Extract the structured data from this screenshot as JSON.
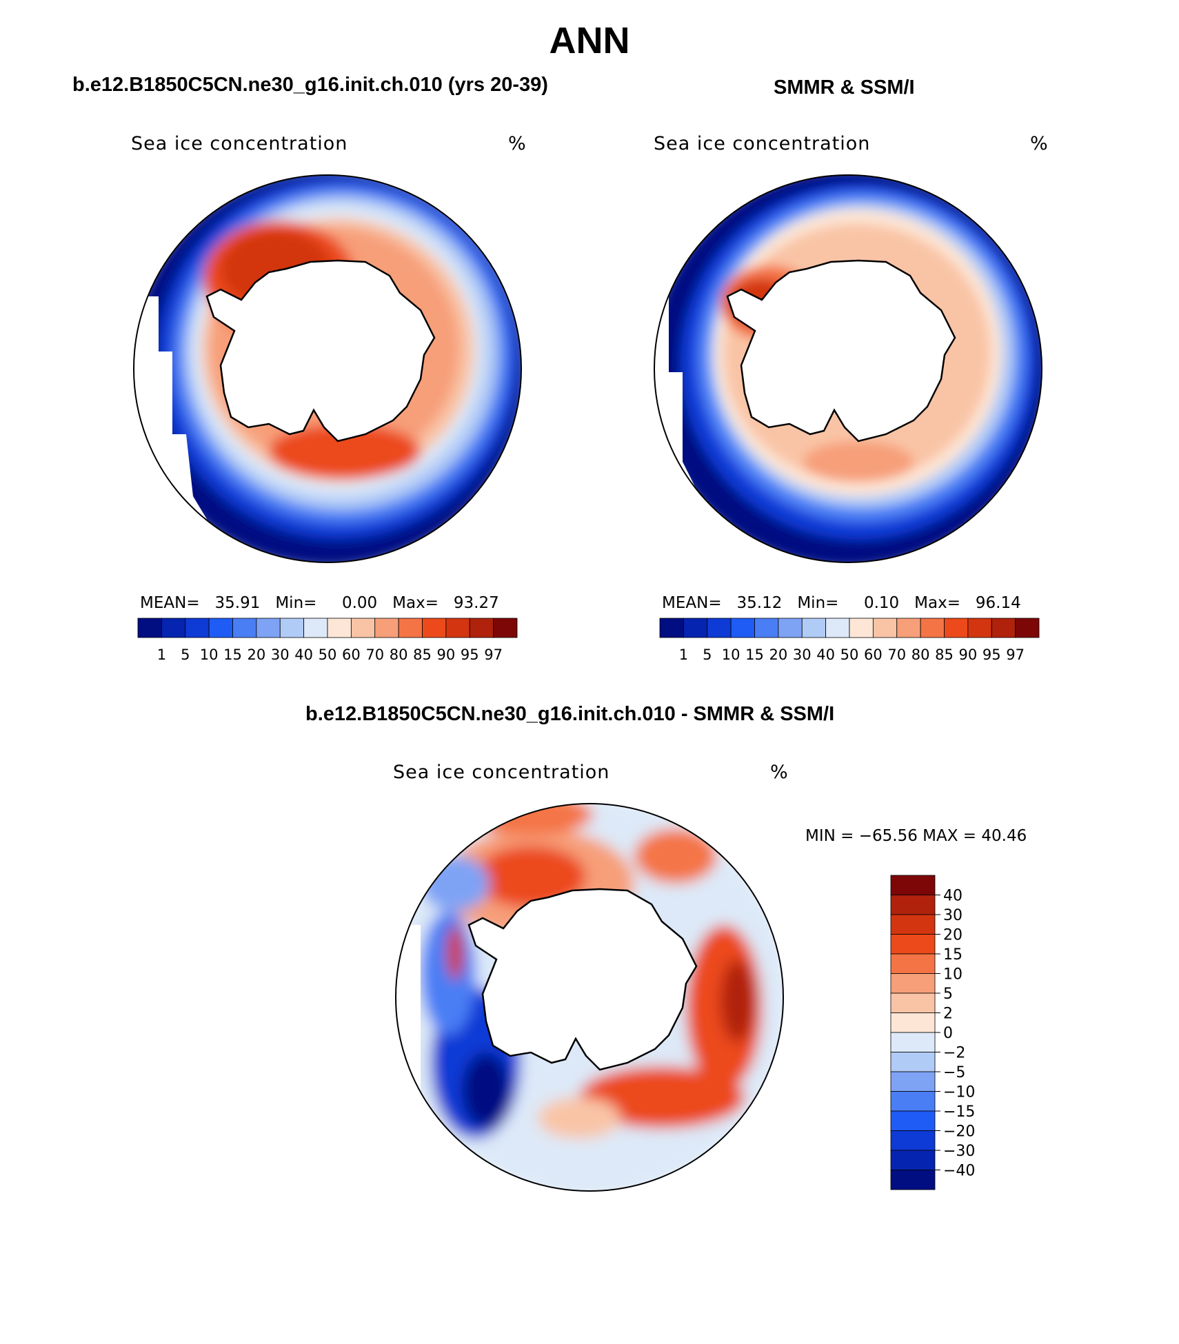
{
  "title": "ANN",
  "panel_left": {
    "case_title": "b.e12.B1850C5CN.ne30_g16.init.ch.010 (yrs 20-39)",
    "variable": "Sea ice concentration",
    "units": "%",
    "stats": {
      "mean_label": "MEAN=",
      "mean": "35.91",
      "min_label": "Min=",
      "min": "0.00",
      "max_label": "Max=",
      "max": "93.27"
    }
  },
  "panel_right": {
    "case_title": "SMMR & SSM/I",
    "variable": "Sea ice concentration",
    "units": "%",
    "stats": {
      "mean_label": "MEAN=",
      "mean": "35.12",
      "min_label": "Min=",
      "min": "0.10",
      "max_label": "Max=",
      "max": "96.14"
    }
  },
  "panel_diff": {
    "case_title": "b.e12.B1850C5CN.ne30_g16.init.ch.010 - SMMR & SSM/I",
    "variable": "Sea ice concentration",
    "units": "%",
    "minmax": "MIN = −65.56 MAX =   40.46"
  },
  "colorbar_conc": {
    "labels": [
      "1",
      "5",
      "10",
      "15",
      "20",
      "30",
      "40",
      "50",
      "60",
      "70",
      "80",
      "85",
      "90",
      "95",
      "97"
    ],
    "colors": [
      "#000e82",
      "#0524b0",
      "#0e3ad6",
      "#1f5cf5",
      "#4a7ef5",
      "#7ea3f5",
      "#b1cbf7",
      "#dde9f8",
      "#fde6d6",
      "#f9c4a6",
      "#f79f79",
      "#f47446",
      "#ec4a1a",
      "#d33510",
      "#b0220c",
      "#7d0607"
    ]
  },
  "colorbar_diff": {
    "labels": [
      "40",
      "30",
      "20",
      "15",
      "10",
      "5",
      "2",
      "0",
      "−2",
      "−5",
      "−10",
      "−15",
      "−20",
      "−30",
      "−40"
    ],
    "colors": [
      "#7d0607",
      "#b0220c",
      "#d33510",
      "#ec4a1a",
      "#f47446",
      "#f79f79",
      "#f9c4a6",
      "#fde6d6",
      "#dde9f8",
      "#b1cbf7",
      "#7ea3f5",
      "#4a7ef5",
      "#1f5cf5",
      "#0e3ad6",
      "#0524b0",
      "#000e82"
    ]
  }
}
